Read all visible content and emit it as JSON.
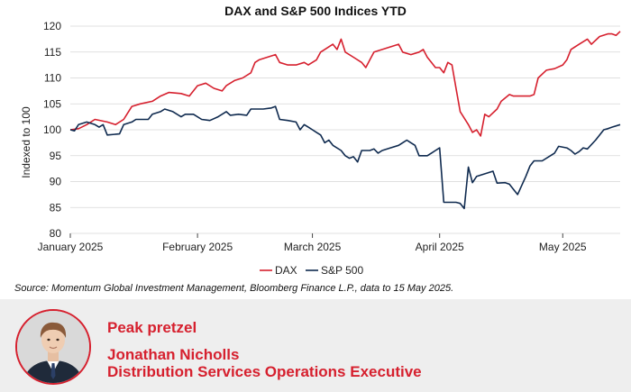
{
  "chart_data": {
    "type": "line",
    "title": "DAX and S&P 500 Indices YTD",
    "xlabel": "",
    "ylabel": "Indexed to 100",
    "ylim": [
      80,
      120
    ],
    "yticks": [
      80,
      85,
      90,
      95,
      100,
      105,
      110,
      115,
      120
    ],
    "xlim": [
      0,
      134
    ],
    "xticks": [
      {
        "pos": 0,
        "label": "January 2025"
      },
      {
        "pos": 31,
        "label": "February 2025"
      },
      {
        "pos": 59,
        "label": "March 2025"
      },
      {
        "pos": 90,
        "label": "April 2025"
      },
      {
        "pos": 120,
        "label": "May 2025"
      }
    ],
    "legend": "bottom-center",
    "series": [
      {
        "name": "DAX",
        "color": "#d6202e",
        "points": [
          [
            0,
            100
          ],
          [
            2,
            100.2
          ],
          [
            4,
            101
          ],
          [
            6,
            102
          ],
          [
            9,
            101.5
          ],
          [
            11,
            101
          ],
          [
            13,
            102
          ],
          [
            15,
            104.5
          ],
          [
            17,
            105
          ],
          [
            20,
            105.5
          ],
          [
            22,
            106.5
          ],
          [
            24,
            107.2
          ],
          [
            27,
            107
          ],
          [
            29,
            106.5
          ],
          [
            31,
            108.5
          ],
          [
            33,
            109
          ],
          [
            35,
            108
          ],
          [
            37,
            107.5
          ],
          [
            38,
            108.5
          ],
          [
            40,
            109.5
          ],
          [
            42,
            110
          ],
          [
            44,
            111
          ],
          [
            45,
            113
          ],
          [
            46,
            113.5
          ],
          [
            48,
            114
          ],
          [
            50,
            114.5
          ],
          [
            51,
            113
          ],
          [
            53,
            112.5
          ],
          [
            55,
            112.5
          ],
          [
            57,
            113
          ],
          [
            58,
            112.5
          ],
          [
            60,
            113.5
          ],
          [
            61,
            115
          ],
          [
            62,
            115.5
          ],
          [
            64,
            116.5
          ],
          [
            65,
            115.5
          ],
          [
            66,
            117.5
          ],
          [
            67,
            115
          ],
          [
            69,
            114
          ],
          [
            71,
            113
          ],
          [
            72,
            112
          ],
          [
            73,
            113.5
          ],
          [
            74,
            115
          ],
          [
            76,
            115.5
          ],
          [
            78,
            116
          ],
          [
            80,
            116.5
          ],
          [
            81,
            115
          ],
          [
            83,
            114.5
          ],
          [
            85,
            115
          ],
          [
            86,
            115.5
          ],
          [
            87,
            114
          ],
          [
            88,
            113
          ],
          [
            89,
            112
          ],
          [
            90,
            112
          ],
          [
            91,
            111
          ],
          [
            92,
            113
          ],
          [
            93,
            112.5
          ],
          [
            94,
            108
          ],
          [
            95,
            103.5
          ],
          [
            97,
            101
          ],
          [
            98,
            99.5
          ],
          [
            99,
            100
          ],
          [
            100,
            98.8
          ],
          [
            101,
            103
          ],
          [
            102,
            102.5
          ],
          [
            104,
            104
          ],
          [
            105,
            105.5
          ],
          [
            107,
            106.8
          ],
          [
            108,
            106.5
          ],
          [
            110,
            106.5
          ],
          [
            112,
            106.5
          ],
          [
            113,
            106.8
          ],
          [
            114,
            110
          ],
          [
            116,
            111.5
          ],
          [
            118,
            111.8
          ],
          [
            120,
            112.5
          ],
          [
            121,
            113.5
          ],
          [
            122,
            115.5
          ],
          [
            124,
            116.5
          ],
          [
            126,
            117.5
          ],
          [
            127,
            116.5
          ],
          [
            129,
            118
          ],
          [
            131,
            118.5
          ],
          [
            132,
            118.5
          ],
          [
            133,
            118.2
          ],
          [
            134,
            119
          ]
        ]
      },
      {
        "name": "S&P 500",
        "color": "#0f2a4f",
        "points": [
          [
            0,
            100
          ],
          [
            1,
            99.8
          ],
          [
            2,
            101
          ],
          [
            4,
            101.5
          ],
          [
            6,
            101
          ],
          [
            7,
            100.5
          ],
          [
            8,
            101
          ],
          [
            9,
            99
          ],
          [
            12,
            99.2
          ],
          [
            13,
            101
          ],
          [
            15,
            101.5
          ],
          [
            16,
            102
          ],
          [
            19,
            102
          ],
          [
            20,
            103
          ],
          [
            22,
            103.5
          ],
          [
            23,
            104
          ],
          [
            25,
            103.5
          ],
          [
            27,
            102.5
          ],
          [
            28,
            103
          ],
          [
            30,
            103
          ],
          [
            32,
            102
          ],
          [
            34,
            101.8
          ],
          [
            36,
            102.5
          ],
          [
            38,
            103.5
          ],
          [
            39,
            102.8
          ],
          [
            41,
            103
          ],
          [
            43,
            102.8
          ],
          [
            44,
            104
          ],
          [
            47,
            104
          ],
          [
            49,
            104.2
          ],
          [
            50,
            104.5
          ],
          [
            51,
            102
          ],
          [
            53,
            101.8
          ],
          [
            55,
            101.5
          ],
          [
            56,
            100
          ],
          [
            57,
            101
          ],
          [
            58,
            100.5
          ],
          [
            59,
            100
          ],
          [
            60,
            99.5
          ],
          [
            61,
            99
          ],
          [
            62,
            97.5
          ],
          [
            63,
            98
          ],
          [
            64,
            97
          ],
          [
            66,
            96
          ],
          [
            67,
            95
          ],
          [
            68,
            94.5
          ],
          [
            69,
            94.8
          ],
          [
            70,
            93.8
          ],
          [
            71,
            96
          ],
          [
            73,
            96
          ],
          [
            74,
            96.3
          ],
          [
            75,
            95.5
          ],
          [
            76,
            96
          ],
          [
            78,
            96.5
          ],
          [
            80,
            97
          ],
          [
            81,
            97.5
          ],
          [
            82,
            98
          ],
          [
            83,
            97.5
          ],
          [
            84,
            97
          ],
          [
            85,
            95
          ],
          [
            87,
            95
          ],
          [
            88,
            95.5
          ],
          [
            89,
            96
          ],
          [
            90,
            96.5
          ],
          [
            91,
            86
          ],
          [
            94,
            86
          ],
          [
            95,
            85.8
          ],
          [
            96,
            84.8
          ],
          [
            97,
            92.8
          ],
          [
            98,
            89.8
          ],
          [
            99,
            91
          ],
          [
            101,
            91.5
          ],
          [
            103,
            92
          ],
          [
            104,
            89.7
          ],
          [
            106,
            89.8
          ],
          [
            107,
            89.5
          ],
          [
            108,
            88.5
          ],
          [
            109,
            87.5
          ],
          [
            111,
            91
          ],
          [
            112,
            93
          ],
          [
            113,
            94
          ],
          [
            115,
            94
          ],
          [
            117,
            95
          ],
          [
            118,
            95.5
          ],
          [
            119,
            96.8
          ],
          [
            121,
            96.5
          ],
          [
            122,
            96
          ],
          [
            123,
            95.3
          ],
          [
            124,
            95.8
          ],
          [
            125,
            96.5
          ],
          [
            126,
            96.3
          ],
          [
            128,
            98
          ],
          [
            130,
            100
          ],
          [
            131,
            100.2
          ],
          [
            132,
            100.5
          ],
          [
            134,
            101
          ]
        ]
      }
    ]
  },
  "source_note": "Source: Momentum Global Investment Management, Bloomberg Finance L.P., data to 15 May 2025.",
  "profile": {
    "headline": "Peak pretzel",
    "author_name": "Jonathan Nicholls",
    "author_role": "Distribution Services Operations Executive",
    "accent_color": "#d6202e"
  }
}
